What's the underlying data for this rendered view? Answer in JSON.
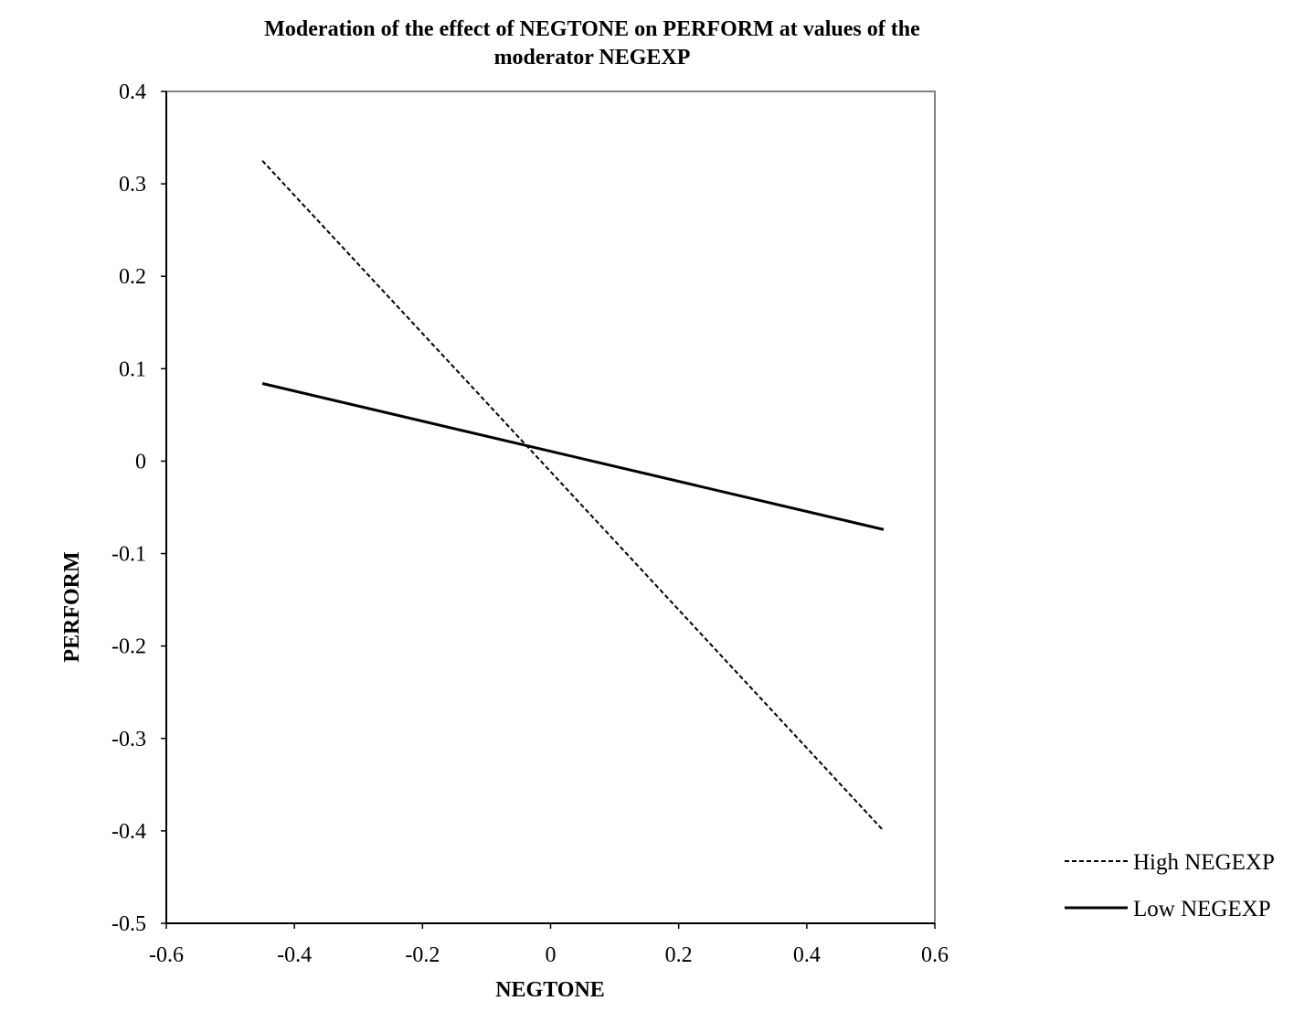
{
  "chart_data": {
    "type": "line",
    "title_line1": "Moderation of the effect of NEGTONE on PERFORM at values of the",
    "title_line2": "moderator NEGEXP",
    "xlabel": "NEGTONE",
    "ylabel": "PERFORM",
    "xlim": [
      -0.6,
      0.6
    ],
    "ylim": [
      -0.5,
      0.4
    ],
    "x_ticks": [
      "-0.6",
      "-0.4",
      "-0.2",
      "0",
      "0.2",
      "0.4",
      "0.6"
    ],
    "x_tick_values": [
      -0.6,
      -0.4,
      -0.2,
      0,
      0.2,
      0.4,
      0.6
    ],
    "y_ticks": [
      "0.4",
      "0.3",
      "0.2",
      "0.1",
      "0",
      "-0.1",
      "-0.2",
      "-0.3",
      "-0.4",
      "-0.5"
    ],
    "y_tick_values": [
      0.4,
      0.3,
      0.2,
      0.1,
      0,
      -0.1,
      -0.2,
      -0.3,
      -0.4,
      -0.5
    ],
    "grid": false,
    "legend_position": "bottom-right",
    "series": [
      {
        "name": "High NEGEXP",
        "style": "dashed",
        "color": "#000000",
        "x": [
          -0.45,
          0.52
        ],
        "y": [
          0.325,
          -0.4
        ]
      },
      {
        "name": "Low NEGEXP",
        "style": "solid",
        "color": "#000000",
        "x": [
          -0.45,
          0.52
        ],
        "y": [
          0.084,
          -0.074
        ]
      }
    ]
  }
}
